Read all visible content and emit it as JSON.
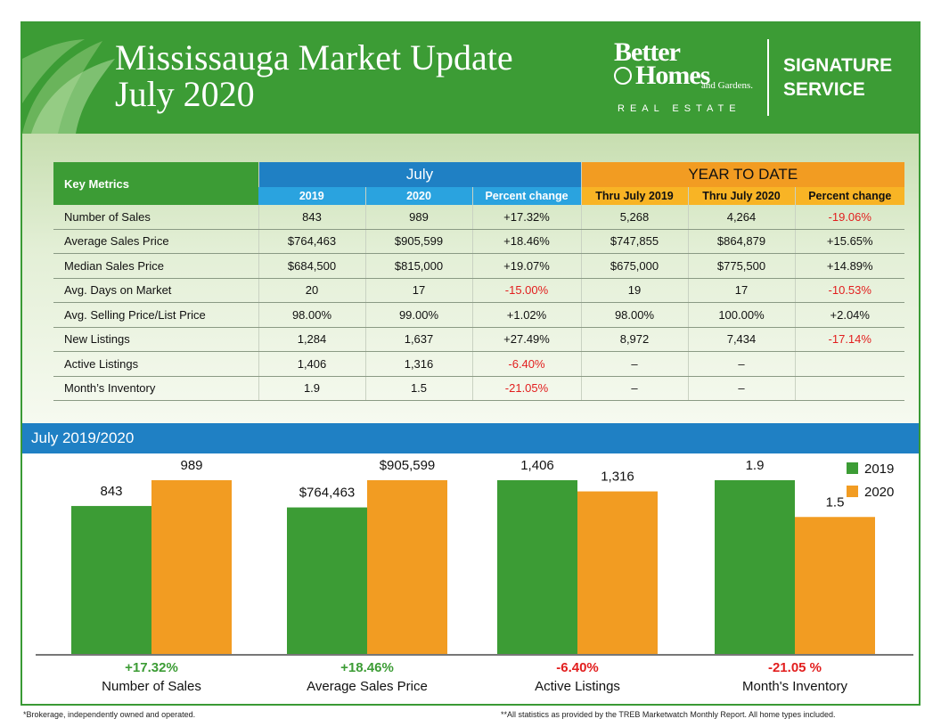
{
  "header": {
    "title_line1": "Mississauga Market Update",
    "title_line2": "July 2020",
    "brand_better": "Better",
    "brand_homes": "Homes",
    "brand_gardens": "and Gardens.",
    "brand_real_estate": "REAL ESTATE",
    "signature_line1": "SIGNATURE",
    "signature_line2": "SERVICE"
  },
  "colors": {
    "green": "#3c9c35",
    "blue": "#1f80c4",
    "orange": "#f29c22",
    "negative": "#e21e1e"
  },
  "table": {
    "key_metrics_label": "Key Metrics",
    "july_label": "July",
    "ytd_label": "YEAR TO DATE",
    "columns": [
      "2019",
      "2020",
      "Percent change",
      "Thru July 2019",
      "Thru July 2020",
      "Percent change"
    ],
    "rows": [
      {
        "label": "Number of Sales",
        "cells": [
          "843",
          "989",
          "+17.32%",
          "5,268",
          "4,264",
          "-19.06%"
        ]
      },
      {
        "label": "Average Sales Price",
        "cells": [
          "$764,463",
          "$905,599",
          "+18.46%",
          "$747,855",
          "$864,879",
          "+15.65%"
        ]
      },
      {
        "label": "Median Sales Price",
        "cells": [
          "$684,500",
          "$815,000",
          "+19.07%",
          "$675,000",
          "$775,500",
          "+14.89%"
        ]
      },
      {
        "label": "Avg. Days on Market",
        "cells": [
          "20",
          "17",
          "-15.00%",
          "19",
          "17",
          "-10.53%"
        ]
      },
      {
        "label": "Avg. Selling Price/List Price",
        "cells": [
          "98.00%",
          "99.00%",
          "+1.02%",
          "98.00%",
          "100.00%",
          "+2.04%"
        ]
      },
      {
        "label": "New Listings",
        "cells": [
          "1,284",
          "1,637",
          "+27.49%",
          "8,972",
          "7,434",
          "-17.14%"
        ]
      },
      {
        "label": "Active Listings",
        "cells": [
          "1,406",
          "1,316",
          "-6.40%",
          "–",
          "–",
          ""
        ]
      },
      {
        "label": "Month’s Inventory",
        "cells": [
          "1.9",
          "1.5",
          "-21.05%",
          "–",
          "–",
          ""
        ]
      }
    ]
  },
  "band_label": "July 2019/2020",
  "chart_data": {
    "type": "bar",
    "categories": [
      "Number of Sales",
      "Average Sales Price",
      "Active Listings",
      "Month's Inventory"
    ],
    "series": [
      {
        "name": "2019",
        "values": [
          843,
          764463,
          1406,
          1.9
        ],
        "labels": [
          "843",
          "$764,463",
          "1,406",
          "1.9"
        ],
        "color": "#3c9c35"
      },
      {
        "name": "2020",
        "values": [
          989,
          905599,
          1316,
          1.5
        ],
        "labels": [
          "989",
          "$905,599",
          "1,316",
          "1.5"
        ],
        "color": "#f29c22"
      }
    ],
    "percent_changes": [
      "+17.32%",
      "+18.46%",
      "-6.40%",
      "-21.05 %"
    ],
    "legend_position": "top-right"
  },
  "footer": {
    "left": "*Brokerage, independently owned and operated.",
    "right": "**All statistics as provided by the TREB Marketwatch Monthly Report. All home types included."
  }
}
